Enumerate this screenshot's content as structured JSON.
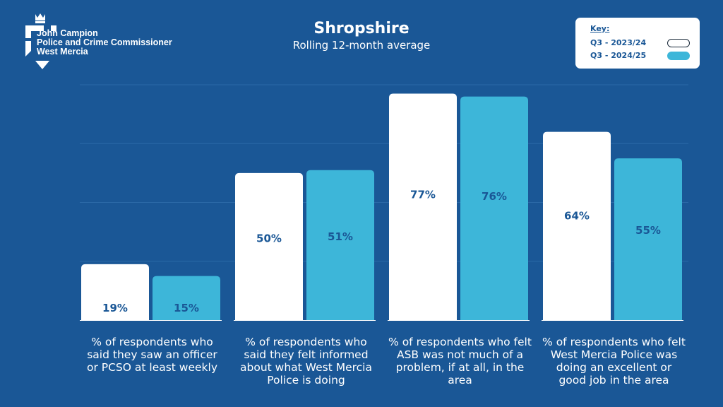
{
  "logo": {
    "line1": "John Campion",
    "line2": "Police and Crime Commissioner",
    "line3": "West Mercia"
  },
  "key": {
    "title": "Key:",
    "items": [
      {
        "label": "Q3 - 2023/24",
        "color": "#ffffff"
      },
      {
        "label": "Q3 - 2024/25",
        "color": "#3db6d9"
      }
    ]
  },
  "chart_data": {
    "type": "bar",
    "title": "Shropshire",
    "subtitle": "Rolling 12-month average",
    "categories": [
      "% of respondents who said they saw an officer or PCSO at least weekly",
      "% of respondents who said they felt informed about what West Mercia Police is doing",
      "% of respondents who felt ASB was not much of a problem, if at all, in the area",
      "% of respondents who felt West Mercia Police was doing an excellent or good job in the area"
    ],
    "series": [
      {
        "name": "Q3 - 2023/24",
        "values": [
          19,
          50,
          77,
          64
        ],
        "labels": [
          "19%",
          "50%",
          "77%",
          "64%"
        ],
        "color": "#ffffff"
      },
      {
        "name": "Q3 - 2024/25",
        "values": [
          15,
          51,
          76,
          55
        ],
        "labels": [
          "15%",
          "51%",
          "76%",
          "55%"
        ],
        "color": "#3db6d9"
      }
    ],
    "ylim": [
      0,
      80
    ],
    "grid": true,
    "legend": "top-right"
  }
}
